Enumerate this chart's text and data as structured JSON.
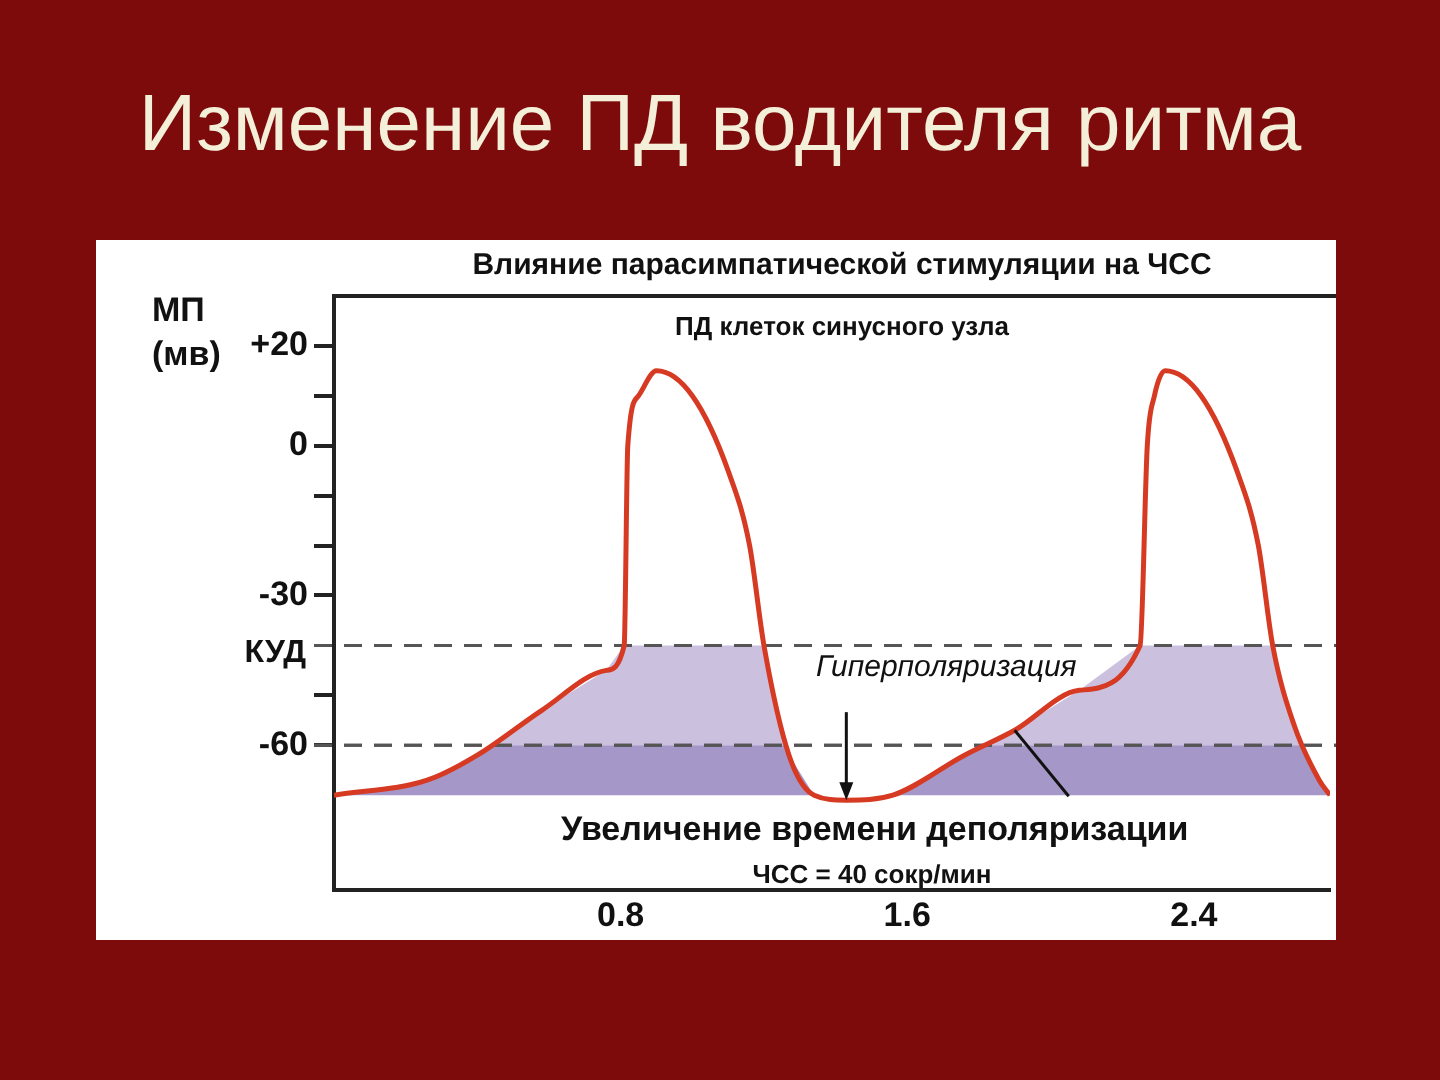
{
  "chart_data": {
    "type": "line",
    "title": "Изменение ПД водителя ритма",
    "subtitle": "Влияние парасимпатической стимуляции на ЧСС",
    "ylabel": "МП (мв)",
    "x": [
      0,
      0.26,
      0.4,
      0.58,
      0.76,
      0.81,
      0.82,
      0.85,
      0.9,
      1.0,
      1.1,
      1.16,
      1.2,
      1.27,
      1.34,
      1.43,
      1.56,
      1.76,
      1.9,
      2.08,
      2.25,
      2.27,
      2.29,
      2.32,
      2.42,
      2.52,
      2.58,
      2.62,
      2.68,
      2.75,
      2.78
    ],
    "series": [
      {
        "color": "#d63a22",
        "values": [
          -70,
          -67,
          -62,
          -53,
          -45,
          -40,
          0,
          10,
          15,
          10,
          -5,
          -20,
          -40,
          -62,
          -70,
          -71,
          -70,
          -62,
          -57,
          -49,
          -40,
          0,
          10,
          15,
          10,
          -5,
          -20,
          -40,
          -56,
          -67,
          -70
        ]
      }
    ],
    "xlim": [
      0,
      2.78
    ],
    "xticks": [
      0.8,
      1.6,
      2.4
    ],
    "ylim": [
      -89,
      30
    ],
    "yticks": [
      {
        "value": 20,
        "label": "+20"
      },
      {
        "value": 10,
        "label": null
      },
      0,
      {
        "value": -10,
        "label": null
      },
      {
        "value": -20,
        "label": null
      },
      -30,
      {
        "value": -50,
        "label": null
      },
      -60
    ],
    "ref_lines": [
      {
        "axis": "y",
        "value": -40,
        "label": "КУД",
        "line_style": "dashed",
        "color": "#555555"
      },
      {
        "axis": "y",
        "value": -60,
        "label": null,
        "line_style": "dashed",
        "color": "#555555"
      }
    ],
    "bands": [
      {
        "axis": "y",
        "from": -60,
        "to": -40,
        "label": null,
        "color": "#cbc1df"
      },
      {
        "axis": "y",
        "from": -70,
        "to": -60,
        "label": null,
        "color": "#a697c9"
      }
    ],
    "annotations": [
      "ПД клеток синусного узла",
      {
        "text": "Гиперполяризация",
        "x": 1.43,
        "y": -71
      },
      {
        "text": "Увеличение времени деполяризации",
        "x": 1.9,
        "y": -57
      },
      "ЧСС = 40 сокр/мин"
    ],
    "grid": false,
    "legend": false,
    "marker": "none",
    "line_style": "solid"
  }
}
